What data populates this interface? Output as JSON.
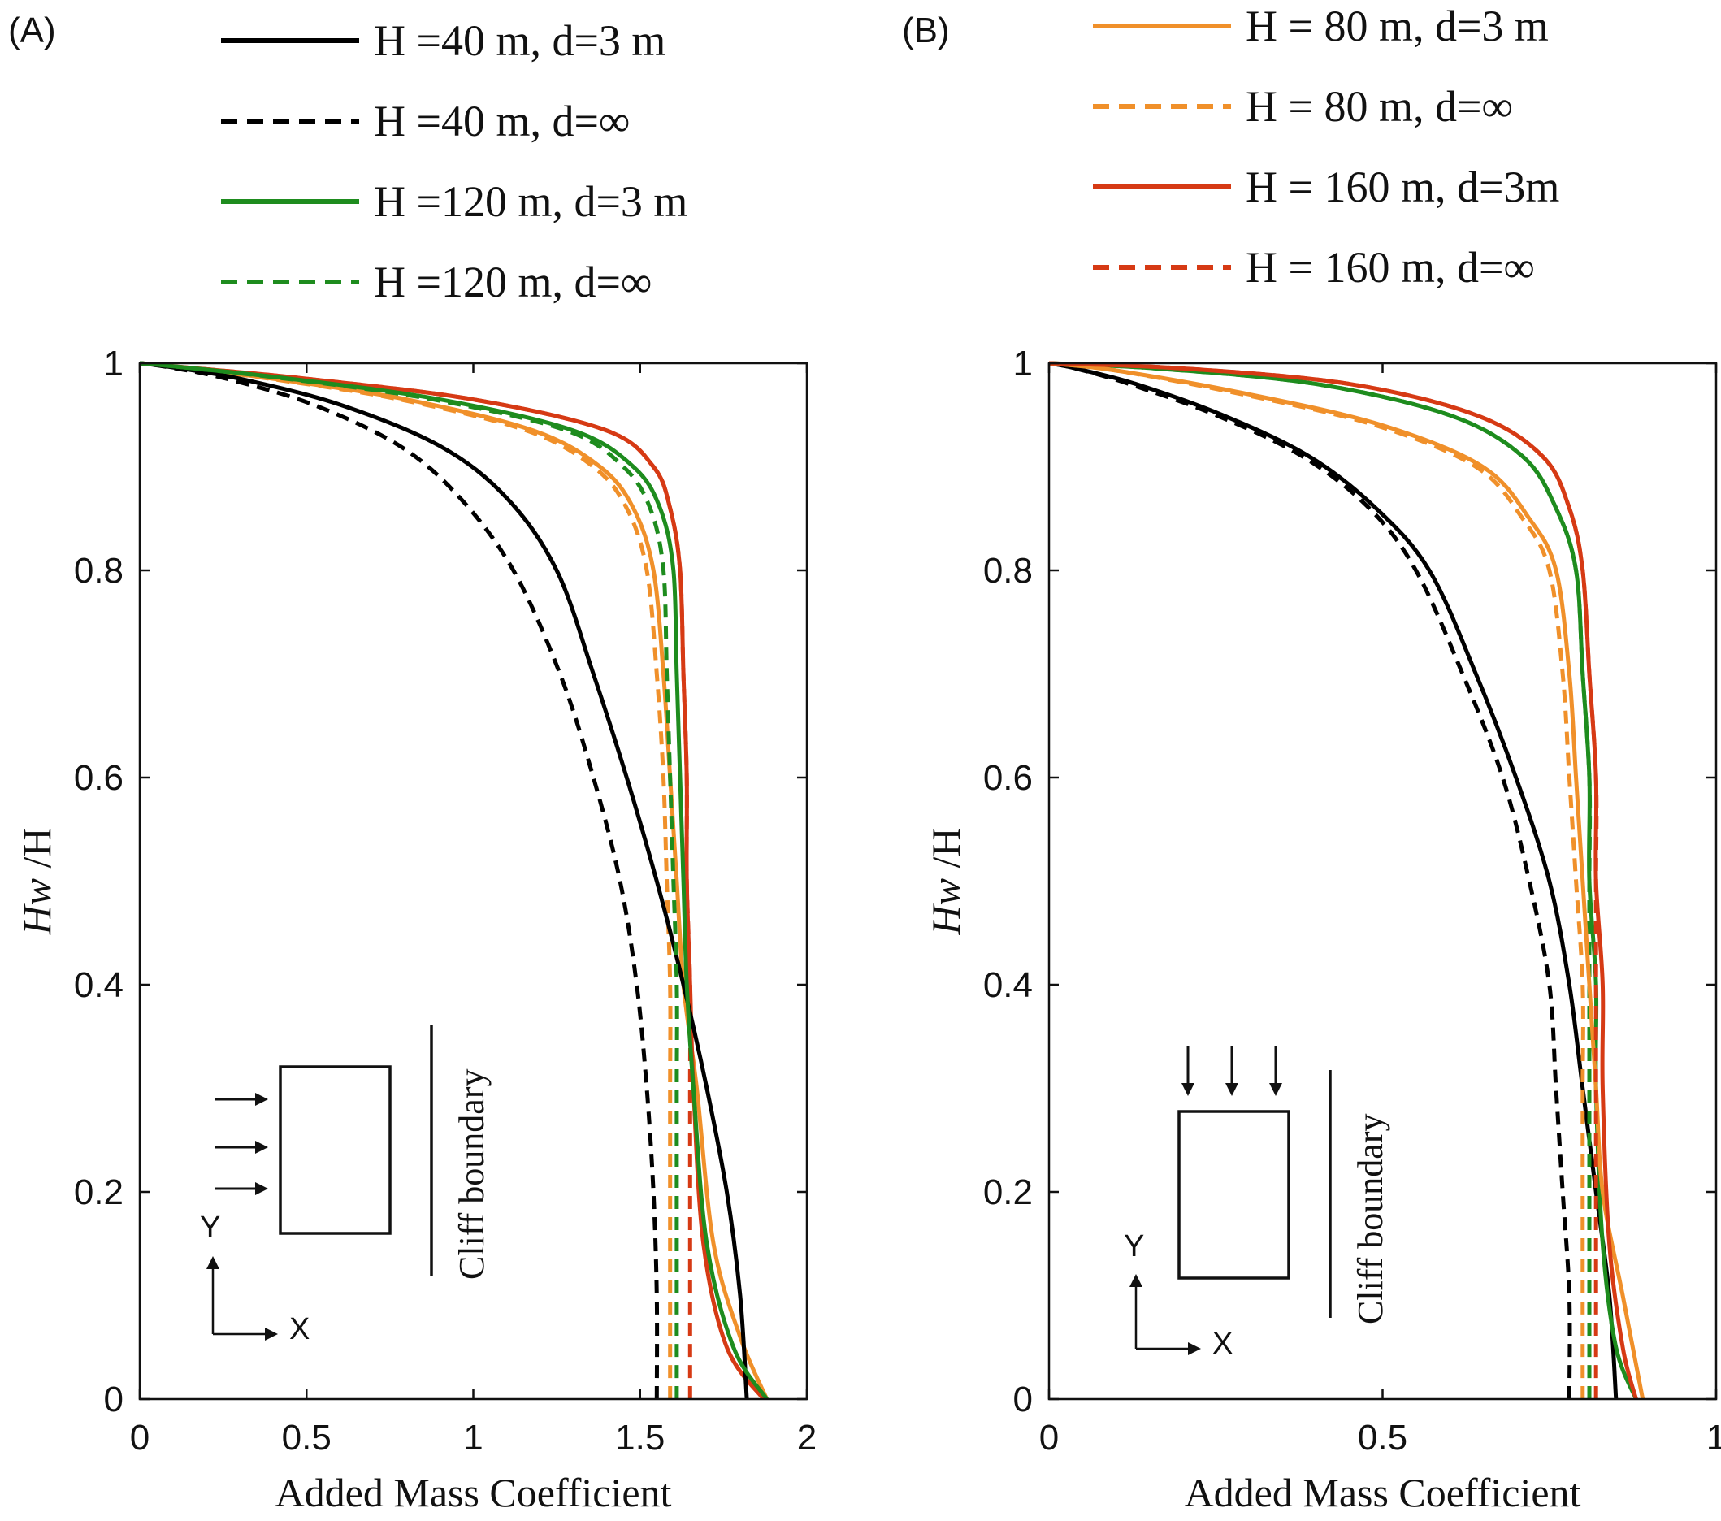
{
  "chart_data": [
    {
      "type": "line",
      "panel_label": "(A)",
      "xlabel": "Added Mass Coefficient",
      "ylabel_main": "Hw",
      "ylabel_suffix": " /H",
      "xlim": [
        0,
        2
      ],
      "ylim": [
        0,
        1
      ],
      "xticks": [
        0,
        0.5,
        1,
        1.5,
        2
      ],
      "xtick_labels": [
        "0",
        "0.5",
        "1",
        "1.5",
        "2"
      ],
      "yticks": [
        0,
        0.2,
        0.4,
        0.6,
        0.8,
        1
      ],
      "ytick_labels": [
        "0",
        "0.2",
        "0.4",
        "0.6",
        "0.8",
        "1"
      ],
      "inset": {
        "boundary_label": "Cliff boundary",
        "axis_x": "X",
        "axis_y": "Y",
        "load_direction": "x"
      },
      "series": [
        {
          "name": "H =40 m, d=3 m",
          "color": "#000000",
          "dash": "solid",
          "x": [
            1.82,
            1.8,
            1.76,
            1.7,
            1.63,
            1.55,
            1.46,
            1.36,
            1.25,
            1.1,
            0.9,
            0.6,
            0.3,
            0.1,
            0
          ],
          "y": [
            0,
            0.1,
            0.2,
            0.3,
            0.4,
            0.5,
            0.6,
            0.7,
            0.8,
            0.87,
            0.92,
            0.96,
            0.985,
            0.996,
            1
          ]
        },
        {
          "name": "H =40 m, d=∞",
          "color": "#000000",
          "dash": "dashed",
          "x": [
            1.55,
            1.55,
            1.54,
            1.52,
            1.49,
            1.44,
            1.36,
            1.26,
            1.12,
            0.96,
            0.78,
            0.52,
            0.26,
            0.09,
            0
          ],
          "y": [
            0,
            0.1,
            0.2,
            0.3,
            0.4,
            0.5,
            0.6,
            0.7,
            0.8,
            0.87,
            0.92,
            0.96,
            0.985,
            0.996,
            1
          ]
        },
        {
          "name": "H =120 m, d=3 m",
          "color": "#1e8c1e",
          "dash": "solid",
          "x": [
            1.88,
            1.78,
            1.7,
            1.66,
            1.64,
            1.63,
            1.62,
            1.61,
            1.6,
            1.56,
            1.48,
            1.3,
            0.9,
            0.45,
            0.1,
            0
          ],
          "y": [
            0,
            0.05,
            0.15,
            0.3,
            0.4,
            0.5,
            0.6,
            0.7,
            0.8,
            0.86,
            0.9,
            0.935,
            0.965,
            0.985,
            0.997,
            1
          ]
        },
        {
          "name": "H =120 m, d=∞",
          "color": "#1e8c1e",
          "dash": "dashed",
          "x": [
            1.61,
            1.61,
            1.61,
            1.61,
            1.61,
            1.6,
            1.59,
            1.58,
            1.57,
            1.53,
            1.45,
            1.28,
            0.88,
            0.44,
            0.1,
            0
          ],
          "y": [
            0,
            0.1,
            0.2,
            0.3,
            0.4,
            0.5,
            0.6,
            0.7,
            0.8,
            0.86,
            0.9,
            0.935,
            0.965,
            0.985,
            0.997,
            1
          ]
        }
      ]
    },
    {
      "type": "line",
      "panel_label": "(B)",
      "xlabel": "Added Mass Coefficient",
      "ylabel_main": "Hw",
      "ylabel_suffix": " /H",
      "xlim": [
        0,
        1
      ],
      "ylim": [
        0,
        1
      ],
      "xticks": [
        0,
        0.5,
        1
      ],
      "xtick_labels": [
        "0",
        "0.5",
        "1"
      ],
      "yticks": [
        0,
        0.2,
        0.4,
        0.6,
        0.8,
        1
      ],
      "ytick_labels": [
        "0",
        "0.2",
        "0.4",
        "0.6",
        "0.8",
        "1"
      ],
      "inset": {
        "boundary_label": "Cliff boundary",
        "axis_x": "X",
        "axis_y": "Y",
        "load_direction": "y"
      },
      "series": [
        {
          "name": "H = 80 m, d=3 m",
          "color": "#f0902a",
          "dash": "solid",
          "x": [
            0.89,
            0.86,
            0.83,
            0.82,
            0.81,
            0.8,
            0.79,
            0.78,
            0.76,
            0.72,
            0.65,
            0.5,
            0.3,
            0.1,
            0
          ],
          "y": [
            0,
            0.1,
            0.2,
            0.3,
            0.4,
            0.5,
            0.6,
            0.7,
            0.8,
            0.85,
            0.9,
            0.94,
            0.97,
            0.993,
            1
          ]
        },
        {
          "name": "H = 80 m, d=∞",
          "color": "#f0902a",
          "dash": "dashed",
          "x": [
            0.8,
            0.8,
            0.8,
            0.8,
            0.8,
            0.79,
            0.78,
            0.77,
            0.75,
            0.71,
            0.64,
            0.49,
            0.29,
            0.1,
            0
          ],
          "y": [
            0,
            0.1,
            0.2,
            0.3,
            0.4,
            0.5,
            0.6,
            0.7,
            0.8,
            0.85,
            0.9,
            0.94,
            0.97,
            0.993,
            1
          ]
        },
        {
          "name": "H = 160 m, d=3m",
          "color": "#d63a14",
          "dash": "solid",
          "x": [
            0.88,
            0.86,
            0.84,
            0.83,
            0.83,
            0.82,
            0.82,
            0.81,
            0.8,
            0.78,
            0.74,
            0.64,
            0.45,
            0.2,
            0
          ],
          "y": [
            0,
            0.05,
            0.15,
            0.3,
            0.4,
            0.5,
            0.6,
            0.7,
            0.8,
            0.86,
            0.91,
            0.95,
            0.98,
            0.995,
            1
          ]
        },
        {
          "name": "H = 160 m, d=∞",
          "color": "#d63a14",
          "dash": "dashed",
          "x": [
            0.82,
            0.82,
            0.82,
            0.82,
            0.82,
            0.82,
            0.82,
            0.81,
            0.8,
            0.78,
            0.74,
            0.64,
            0.45,
            0.2,
            0
          ],
          "y": [
            0,
            0.1,
            0.2,
            0.3,
            0.4,
            0.5,
            0.6,
            0.7,
            0.8,
            0.86,
            0.91,
            0.95,
            0.98,
            0.995,
            1
          ]
        }
      ]
    }
  ],
  "overlay_series": [
    {
      "panel": 0,
      "name": "H = 80 m, d=3 m",
      "color": "#f0902a",
      "dash": "solid",
      "x": [
        1.88,
        1.8,
        1.72,
        1.67,
        1.63,
        1.61,
        1.59,
        1.57,
        1.54,
        1.48,
        1.38,
        1.18,
        0.8,
        0.4,
        0.1,
        0
      ],
      "y": [
        0,
        0.06,
        0.15,
        0.3,
        0.4,
        0.5,
        0.6,
        0.7,
        0.8,
        0.86,
        0.9,
        0.935,
        0.965,
        0.985,
        0.997,
        1
      ]
    },
    {
      "panel": 0,
      "name": "H = 80 m, d=∞",
      "color": "#f0902a",
      "dash": "dashed",
      "x": [
        1.59,
        1.59,
        1.59,
        1.59,
        1.59,
        1.58,
        1.57,
        1.55,
        1.52,
        1.46,
        1.36,
        1.16,
        0.78,
        0.39,
        0.1,
        0
      ],
      "y": [
        0,
        0.1,
        0.2,
        0.3,
        0.4,
        0.5,
        0.6,
        0.7,
        0.8,
        0.86,
        0.9,
        0.935,
        0.965,
        0.985,
        0.997,
        1
      ]
    },
    {
      "panel": 0,
      "name": "H = 160 m, d=3m",
      "color": "#d63a14",
      "dash": "solid",
      "x": [
        1.87,
        1.76,
        1.69,
        1.66,
        1.65,
        1.64,
        1.64,
        1.63,
        1.62,
        1.59,
        1.54,
        1.4,
        1.0,
        0.5,
        0.1,
        0
      ],
      "y": [
        0,
        0.05,
        0.15,
        0.3,
        0.4,
        0.5,
        0.6,
        0.7,
        0.8,
        0.86,
        0.9,
        0.935,
        0.965,
        0.985,
        0.997,
        1
      ]
    },
    {
      "panel": 0,
      "name": "H = 160 m, d=∞",
      "color": "#d63a14",
      "dash": "dashed",
      "x": [
        1.65,
        1.65,
        1.65,
        1.65,
        1.65,
        1.64,
        1.64,
        1.63,
        1.62,
        1.59,
        1.54,
        1.4,
        1.0,
        0.5,
        0.1,
        0
      ],
      "y": [
        0,
        0.1,
        0.2,
        0.3,
        0.4,
        0.5,
        0.6,
        0.7,
        0.8,
        0.86,
        0.9,
        0.935,
        0.965,
        0.985,
        0.997,
        1
      ]
    },
    {
      "panel": 1,
      "name": "H =40 m, d=3 m",
      "color": "#000000",
      "dash": "solid",
      "x": [
        0.85,
        0.84,
        0.82,
        0.8,
        0.78,
        0.75,
        0.7,
        0.64,
        0.57,
        0.49,
        0.39,
        0.26,
        0.13,
        0.04,
        0
      ],
      "y": [
        0,
        0.1,
        0.2,
        0.3,
        0.4,
        0.5,
        0.6,
        0.7,
        0.8,
        0.86,
        0.91,
        0.95,
        0.98,
        0.995,
        1
      ]
    },
    {
      "panel": 1,
      "name": "H =40 m, d=∞",
      "color": "#000000",
      "dash": "dashed",
      "x": [
        0.78,
        0.78,
        0.77,
        0.76,
        0.75,
        0.72,
        0.68,
        0.62,
        0.55,
        0.48,
        0.38,
        0.25,
        0.12,
        0.04,
        0
      ],
      "y": [
        0,
        0.1,
        0.2,
        0.3,
        0.4,
        0.5,
        0.6,
        0.7,
        0.8,
        0.86,
        0.91,
        0.95,
        0.98,
        0.995,
        1
      ]
    },
    {
      "panel": 1,
      "name": "H =120 m, d=3 m",
      "color": "#1e8c1e",
      "dash": "solid",
      "x": [
        0.88,
        0.85,
        0.83,
        0.82,
        0.82,
        0.81,
        0.81,
        0.8,
        0.79,
        0.76,
        0.71,
        0.6,
        0.4,
        0.16,
        0
      ],
      "y": [
        0,
        0.05,
        0.15,
        0.3,
        0.4,
        0.5,
        0.6,
        0.7,
        0.8,
        0.86,
        0.91,
        0.95,
        0.98,
        0.995,
        1
      ]
    },
    {
      "panel": 1,
      "name": "H =120 m, d=∞",
      "color": "#1e8c1e",
      "dash": "dashed",
      "x": [
        0.81,
        0.81,
        0.81,
        0.81,
        0.81,
        0.81,
        0.81,
        0.8,
        0.79,
        0.76,
        0.71,
        0.6,
        0.4,
        0.16,
        0
      ],
      "y": [
        0,
        0.1,
        0.2,
        0.3,
        0.4,
        0.5,
        0.6,
        0.7,
        0.8,
        0.86,
        0.91,
        0.95,
        0.98,
        0.995,
        1
      ]
    }
  ],
  "legend": {
    "left": [
      {
        "label": "H =40 m, d=3 m",
        "color": "#000000",
        "dash": "solid"
      },
      {
        "label": "H =40 m, d=∞",
        "color": "#000000",
        "dash": "dashed"
      },
      {
        "label": "H =120 m, d=3 m",
        "color": "#1e8c1e",
        "dash": "solid"
      },
      {
        "label": "H =120 m, d=∞",
        "color": "#1e8c1e",
        "dash": "dashed"
      }
    ],
    "right": [
      {
        "label": "H = 80 m, d=3 m",
        "color": "#f0902a",
        "dash": "solid"
      },
      {
        "label": "H = 80 m, d=∞",
        "color": "#f0902a",
        "dash": "dashed"
      },
      {
        "label": "H = 160 m, d=3m",
        "color": "#d63a14",
        "dash": "solid"
      },
      {
        "label": "H = 160 m, d=∞",
        "color": "#d63a14",
        "dash": "dashed"
      }
    ]
  }
}
